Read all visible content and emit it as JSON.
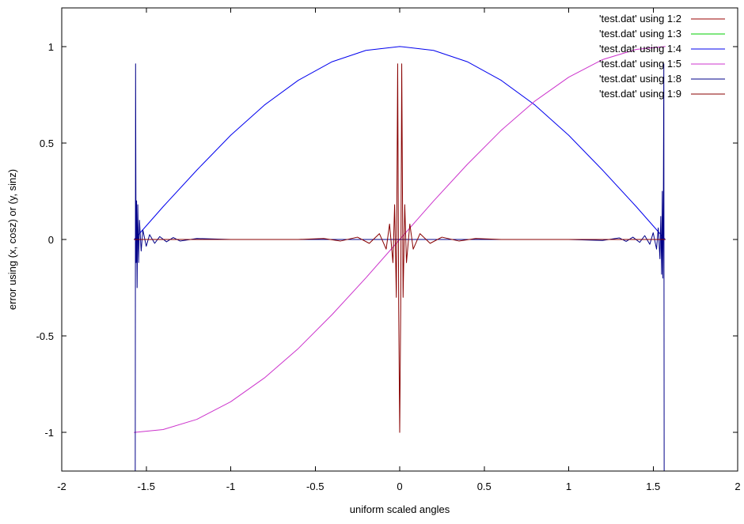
{
  "chart_data": {
    "type": "line",
    "xlabel": "uniform scaled angles",
    "ylabel": "error using (x, cosz) or (y, sinz)",
    "xlim": [
      -2,
      2
    ],
    "ylim": [
      -1.2,
      1.2
    ],
    "x_ticks": [
      -2,
      -1.5,
      -1,
      -0.5,
      0,
      0.5,
      1,
      1.5,
      2
    ],
    "x_tick_labels": [
      "-2",
      "-1.5",
      "-1",
      "-0.5",
      "0",
      "0.5",
      "1",
      "1.5",
      "2"
    ],
    "y_ticks": [
      -1,
      -0.5,
      0,
      0.5,
      1
    ],
    "y_tick_labels": [
      "-1",
      "-0.5",
      "0",
      "0.5",
      "1"
    ],
    "grid": false,
    "legend_position": "top-right",
    "series": [
      {
        "name": "'test.dat' using 1:2",
        "color": "#990000",
        "points": [
          [
            -1.5708,
            0
          ],
          [
            1.5708,
            0
          ]
        ]
      },
      {
        "name": "'test.dat' using 1:3",
        "color": "#00cc00",
        "points": [
          [
            -1.5708,
            0
          ],
          [
            1.5708,
            0
          ]
        ]
      },
      {
        "name": "'test.dat' using 1:4",
        "color": "#0000ee",
        "points": [
          [
            -1.5708,
            0
          ],
          [
            -1.4,
            0.17
          ],
          [
            -1.2,
            0.36
          ],
          [
            -1.0,
            0.54
          ],
          [
            -0.8,
            0.697
          ],
          [
            -0.6,
            0.825
          ],
          [
            -0.4,
            0.921
          ],
          [
            -0.2,
            0.98
          ],
          [
            0,
            1
          ],
          [
            0.2,
            0.98
          ],
          [
            0.4,
            0.921
          ],
          [
            0.6,
            0.825
          ],
          [
            0.8,
            0.697
          ],
          [
            1.0,
            0.54
          ],
          [
            1.2,
            0.36
          ],
          [
            1.4,
            0.17
          ],
          [
            1.5708,
            0
          ]
        ]
      },
      {
        "name": "'test.dat' using 1:5",
        "color": "#cc33cc",
        "points": [
          [
            -1.5708,
            -1
          ],
          [
            -1.4,
            -0.985
          ],
          [
            -1.2,
            -0.932
          ],
          [
            -1.0,
            -0.841
          ],
          [
            -0.8,
            -0.717
          ],
          [
            -0.6,
            -0.565
          ],
          [
            -0.4,
            -0.389
          ],
          [
            -0.2,
            -0.199
          ],
          [
            0,
            0
          ],
          [
            0.2,
            0.199
          ],
          [
            0.4,
            0.389
          ],
          [
            0.6,
            0.565
          ],
          [
            0.8,
            0.717
          ],
          [
            1.0,
            0.841
          ],
          [
            1.2,
            0.932
          ],
          [
            1.4,
            0.985
          ],
          [
            1.5708,
            1
          ]
        ]
      },
      {
        "name": "'test.dat' using 1:8",
        "color": "#000088",
        "points": [
          [
            -1.565,
            -1.2
          ],
          [
            -1.563,
            0.91
          ],
          [
            -1.56,
            -0.12
          ],
          [
            -1.557,
            0.2
          ],
          [
            -1.554,
            -0.25
          ],
          [
            -1.55,
            0.18
          ],
          [
            -1.545,
            -0.12
          ],
          [
            -1.54,
            0.1
          ],
          [
            -1.53,
            -0.06
          ],
          [
            -1.52,
            0.05
          ],
          [
            -1.5,
            -0.035
          ],
          [
            -1.48,
            0.025
          ],
          [
            -1.45,
            -0.02
          ],
          [
            -1.42,
            0.015
          ],
          [
            -1.38,
            -0.012
          ],
          [
            -1.34,
            0.01
          ],
          [
            -1.3,
            -0.008
          ],
          [
            -1.2,
            0.005
          ],
          [
            -1.0,
            0
          ],
          [
            -0.5,
            0
          ],
          [
            0,
            0
          ],
          [
            0.5,
            0
          ],
          [
            1.0,
            0
          ],
          [
            1.2,
            -0.005
          ],
          [
            1.3,
            0.008
          ],
          [
            1.34,
            -0.01
          ],
          [
            1.38,
            0.012
          ],
          [
            1.42,
            -0.015
          ],
          [
            1.45,
            0.02
          ],
          [
            1.48,
            -0.025
          ],
          [
            1.5,
            0.035
          ],
          [
            1.52,
            -0.05
          ],
          [
            1.53,
            0.06
          ],
          [
            1.54,
            -0.1
          ],
          [
            1.545,
            0.12
          ],
          [
            1.55,
            -0.18
          ],
          [
            1.554,
            0.25
          ],
          [
            1.557,
            -0.2
          ],
          [
            1.56,
            0.12
          ],
          [
            1.563,
            0.91
          ],
          [
            1.565,
            -1.2
          ]
        ]
      },
      {
        "name": "'test.dat' using 1:9",
        "color": "#880000",
        "points": [
          [
            -1.5708,
            0
          ],
          [
            -0.6,
            0
          ],
          [
            -0.45,
            0.005
          ],
          [
            -0.35,
            -0.008
          ],
          [
            -0.25,
            0.012
          ],
          [
            -0.18,
            -0.02
          ],
          [
            -0.12,
            0.03
          ],
          [
            -0.08,
            -0.05
          ],
          [
            -0.06,
            0.08
          ],
          [
            -0.04,
            -0.12
          ],
          [
            -0.03,
            0.18
          ],
          [
            -0.02,
            -0.3
          ],
          [
            -0.012,
            0.91
          ],
          [
            -0.006,
            -0.35
          ],
          [
            0,
            -1
          ],
          [
            0.006,
            -0.35
          ],
          [
            0.012,
            0.91
          ],
          [
            0.02,
            -0.3
          ],
          [
            0.03,
            0.18
          ],
          [
            0.04,
            -0.12
          ],
          [
            0.06,
            0.08
          ],
          [
            0.08,
            -0.05
          ],
          [
            0.12,
            0.03
          ],
          [
            0.18,
            -0.02
          ],
          [
            0.25,
            0.012
          ],
          [
            0.35,
            -0.008
          ],
          [
            0.45,
            0.005
          ],
          [
            0.6,
            0
          ],
          [
            1.5708,
            0
          ]
        ]
      }
    ]
  }
}
